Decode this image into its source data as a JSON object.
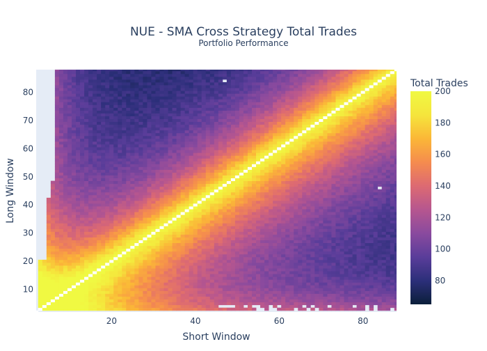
{
  "chart_data": {
    "type": "heatmap",
    "title": "NUE - SMA Cross Strategy Total Trades",
    "subtitle": "Portfolio Performance",
    "xlabel": "Short Window",
    "ylabel": "Long Window",
    "colorbar_title": "Total Trades",
    "x_range": [
      2,
      88
    ],
    "y_range": [
      2,
      88
    ],
    "x_ticks": [
      20,
      40,
      60,
      80
    ],
    "y_ticks": [
      10,
      20,
      30,
      40,
      50,
      60,
      70,
      80
    ],
    "x_tick_labels": [
      "20",
      "40",
      "60",
      "80"
    ],
    "y_tick_labels": [
      "10",
      "20",
      "30",
      "40",
      "50",
      "60",
      "70",
      "80"
    ],
    "colorbar_range": [
      65,
      200
    ],
    "colorbar_ticks": [
      80,
      100,
      120,
      140,
      160,
      180,
      200
    ],
    "colorbar_tick_labels": [
      "80",
      "100",
      "120",
      "140",
      "160",
      "180",
      "200"
    ],
    "colorscale": [
      "#0d0887",
      "#46039f",
      "#7201a8",
      "#9c179e",
      "#bd3786",
      "#d8576b",
      "#ed7953",
      "#fb9f3a",
      "#fdca26",
      "#f0f921"
    ],
    "colorscale_display": [
      "#0b1f3a",
      "#2c2f7a",
      "#5a3d9a",
      "#8a4a9e",
      "#b6568f",
      "#dd6a72",
      "#f58c4e",
      "#fbb737",
      "#f5e53c",
      "#f0f942"
    ],
    "missing_color": "#e5ecf6",
    "diagonal_color": "#ffffff",
    "value_model": {
      "diag_value": 200,
      "far_value": 72,
      "upper_decay_width": 18,
      "lower_decay_width": 26,
      "small_window_boost": 60
    }
  }
}
